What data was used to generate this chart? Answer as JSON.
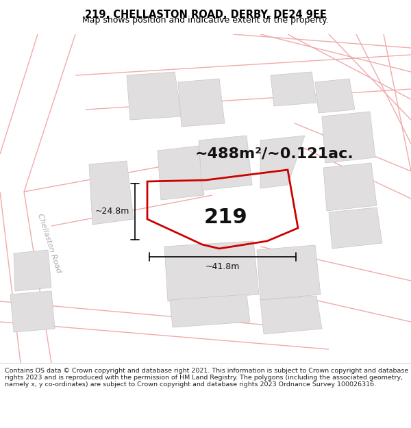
{
  "title_line1": "219, CHELLASTON ROAD, DERBY, DE24 9EE",
  "title_line2": "Map shows position and indicative extent of the property.",
  "area_text": "~488m²/~0.121ac.",
  "property_number": "219",
  "width_label": "~41.8m",
  "height_label": "~24.8m",
  "road_label": "Chellaston Road",
  "footer_text": "Contains OS data © Crown copyright and database right 2021. This information is subject to Crown copyright and database rights 2023 and is reproduced with the permission of HM Land Registry. The polygons (including the associated geometry, namely x, y co-ordinates) are subject to Crown copyright and database rights 2023 Ordnance Survey 100026316.",
  "bg_color": "#ffffff",
  "map_bg_color": "#ffffff",
  "building_color": "#e0dede",
  "road_line_color": "#f0aaaa",
  "property_outline_color": "#cc0000",
  "title_bg_color": "#ffffff",
  "footer_bg_color": "#ffffff",
  "title_fontsize": 10.5,
  "subtitle_fontsize": 9,
  "area_fontsize": 16,
  "prop_label_fontsize": 22,
  "road_label_fontsize": 8,
  "dim_fontsize": 9,
  "footer_fontsize": 6.8
}
